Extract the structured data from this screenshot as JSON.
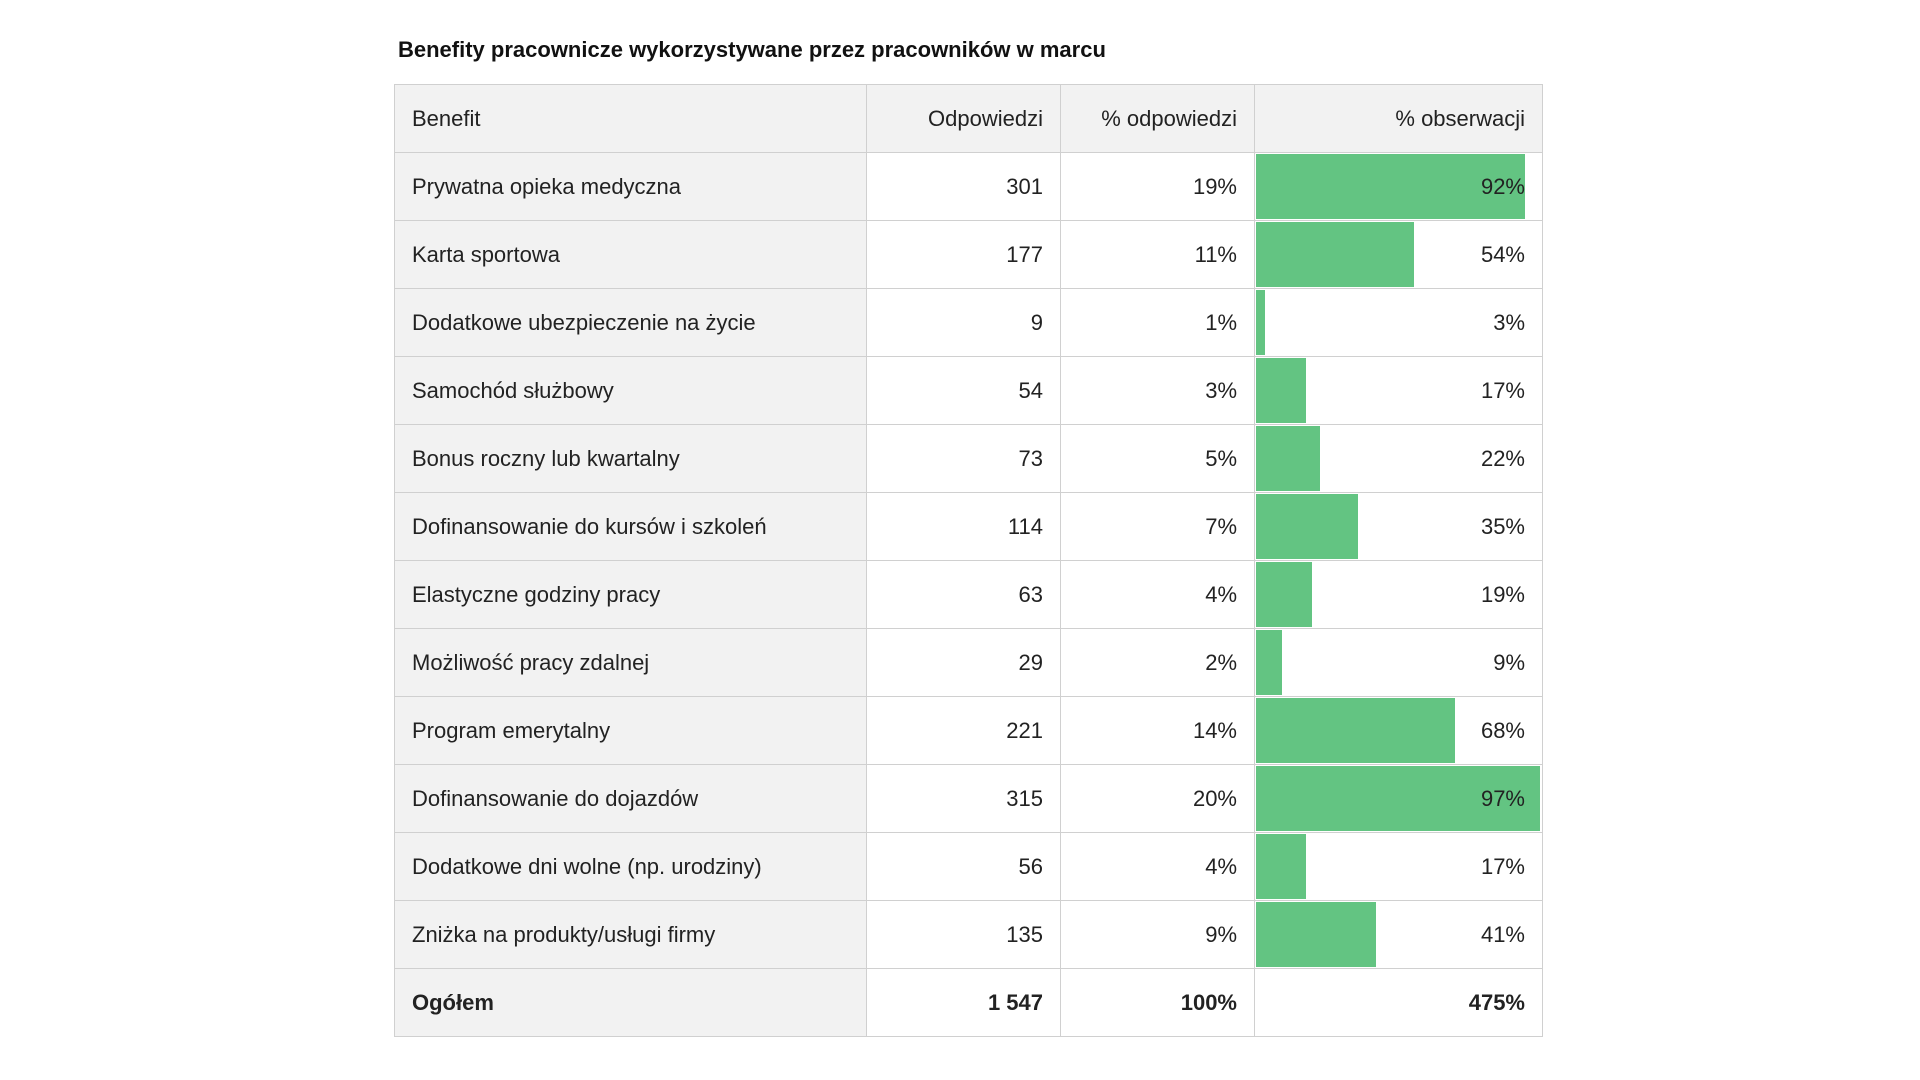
{
  "chart_data": {
    "type": "table",
    "title": "Benefity pracownicze wykorzystywane przez pracowników w marcu",
    "columns": [
      "Benefit",
      "Odpowiedzi",
      "% odpowiedzi",
      "% obserwacji"
    ],
    "bar_color": "#63c482",
    "rows": [
      {
        "label": "Prywatna opieka medyczna",
        "responses": "301",
        "pct_resp": "19%",
        "pct_obs": "92%",
        "obs": 92
      },
      {
        "label": "Karta sportowa",
        "responses": "177",
        "pct_resp": "11%",
        "pct_obs": "54%",
        "obs": 54
      },
      {
        "label": "Dodatkowe ubezpieczenie na życie",
        "responses": "9",
        "pct_resp": "1%",
        "pct_obs": "3%",
        "obs": 3
      },
      {
        "label": "Samochód służbowy",
        "responses": "54",
        "pct_resp": "3%",
        "pct_obs": "17%",
        "obs": 17
      },
      {
        "label": "Bonus roczny lub kwartalny",
        "responses": "73",
        "pct_resp": "5%",
        "pct_obs": "22%",
        "obs": 22
      },
      {
        "label": "Dofinansowanie do kursów i szkoleń",
        "responses": "114",
        "pct_resp": "7%",
        "pct_obs": "35%",
        "obs": 35
      },
      {
        "label": "Elastyczne godziny pracy",
        "responses": "63",
        "pct_resp": "4%",
        "pct_obs": "19%",
        "obs": 19
      },
      {
        "label": "Możliwość pracy zdalnej",
        "responses": "29",
        "pct_resp": "2%",
        "pct_obs": "9%",
        "obs": 9
      },
      {
        "label": "Program emerytalny",
        "responses": "221",
        "pct_resp": "14%",
        "pct_obs": "68%",
        "obs": 68
      },
      {
        "label": "Dofinansowanie do dojazdów",
        "responses": "315",
        "pct_resp": "20%",
        "pct_obs": "97%",
        "obs": 97
      },
      {
        "label": "Dodatkowe dni wolne (np. urodziny)",
        "responses": "56",
        "pct_resp": "4%",
        "pct_obs": "17%",
        "obs": 17
      },
      {
        "label": "Zniżka na produkty/usługi firmy",
        "responses": "135",
        "pct_resp": "9%",
        "pct_obs": "41%",
        "obs": 41
      }
    ],
    "total": {
      "label": "Ogółem",
      "responses": "1 547",
      "pct_resp": "100%",
      "pct_obs": "475%"
    },
    "bar_max": 97
  }
}
